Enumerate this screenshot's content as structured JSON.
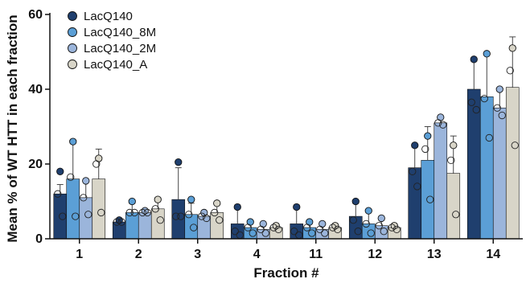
{
  "chart_data": {
    "type": "bar",
    "title": "",
    "xlabel": "Fraction #",
    "ylabel": "Mean % of WT HTT in each fraction",
    "ylim": [
      0,
      60
    ],
    "yticks": [
      0,
      20,
      40,
      60
    ],
    "error_bars": "one-sided upward",
    "individual_points": true,
    "legend_position": "top-left",
    "categories": [
      "1",
      "2",
      "3",
      "4",
      "11",
      "12",
      "13",
      "14"
    ],
    "series": [
      {
        "name": "LacQ140",
        "color": "#1f3f6e",
        "values": [
          12,
          4.5,
          10.5,
          4,
          4,
          6,
          19,
          40
        ],
        "errors": [
          2.5,
          0.5,
          8.5,
          4.5,
          4.5,
          3.5,
          5.5,
          7.5
        ],
        "points": [
          [
            18,
            12,
            6
          ],
          [
            5,
            4.5,
            4.5
          ],
          [
            20.5,
            6,
            6
          ],
          [
            8.5,
            2,
            1
          ],
          [
            8.5,
            2,
            1
          ],
          [
            10,
            5,
            2
          ],
          [
            25,
            18,
            14
          ],
          [
            48,
            36.5,
            34.5
          ]
        ]
      },
      {
        "name": "LacQ140_8M",
        "color": "#5b9fd6",
        "values": [
          16,
          7,
          6.5,
          3,
          3,
          4,
          21,
          38
        ],
        "errors": [
          10,
          2.5,
          3,
          1.5,
          1.5,
          3.5,
          9,
          11.5
        ],
        "points": [
          [
            26,
            16.5,
            6
          ],
          [
            10,
            7,
            7
          ],
          [
            10.5,
            6.5,
            3
          ],
          [
            4.5,
            3,
            1.5
          ],
          [
            4.5,
            3,
            1.5
          ],
          [
            7.5,
            4,
            1.5
          ],
          [
            27.5,
            24,
            10.5
          ],
          [
            49.5,
            37.5,
            27
          ]
        ]
      },
      {
        "name": "LacQ140_2M",
        "color": "#9bb5db",
        "values": [
          11,
          7,
          6,
          2.5,
          2.5,
          3.5,
          31,
          35
        ],
        "errors": [
          4.5,
          0.5,
          0.8,
          1.5,
          1.5,
          1.5,
          1.5,
          5
        ],
        "points": [
          [
            15.5,
            11,
            6.5
          ],
          [
            7.5,
            7,
            7
          ],
          [
            7,
            6,
            5.5
          ],
          [
            4,
            2.5,
            1.5
          ],
          [
            4,
            2.5,
            1.5
          ],
          [
            5.5,
            3.5,
            2
          ],
          [
            32.5,
            31,
            30.5
          ],
          [
            40,
            35,
            33
          ]
        ]
      },
      {
        "name": "LacQ140_A",
        "color": "#d8d5c8",
        "values": [
          16,
          8,
          7,
          3,
          3,
          3,
          17.5,
          40.5
        ],
        "errors": [
          8,
          3,
          2.5,
          0.6,
          0.6,
          0.8,
          10,
          13.5
        ],
        "points": [
          [
            21.5,
            20,
            7
          ],
          [
            10.5,
            8,
            5
          ],
          [
            9.5,
            7,
            5
          ],
          [
            3.5,
            3,
            2.5
          ],
          [
            3.5,
            3,
            2.5
          ],
          [
            3.5,
            3,
            2.5
          ],
          [
            25,
            21,
            6.5
          ],
          [
            51,
            45,
            25
          ]
        ]
      }
    ]
  }
}
